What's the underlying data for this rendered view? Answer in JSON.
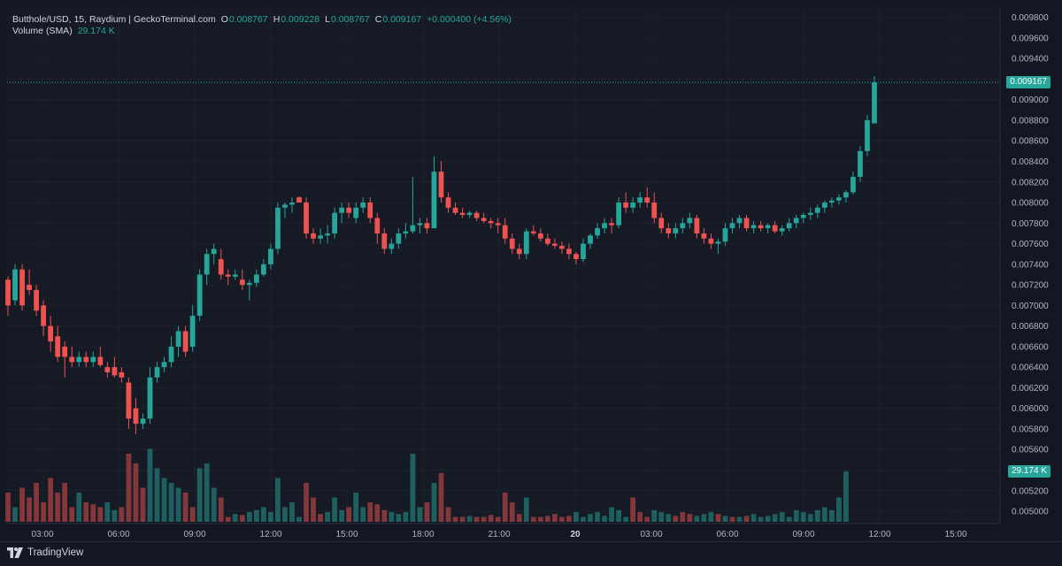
{
  "legend": {
    "symbol": "Butthole/USD, 15, Raydium | GeckoTerminal.com",
    "o_label": "O",
    "o_value": "0.008767",
    "h_label": "H",
    "h_value": "0.009228",
    "l_label": "L",
    "l_value": "0.008767",
    "c_label": "C",
    "c_value": "0.009167",
    "change": "+0.000400 (+4.56%)",
    "volume_label": "Volume (SMA)",
    "volume_value": "29.174 K"
  },
  "price_tag": "0.009167",
  "volume_tag": "29.174 K",
  "branding": "TradingView",
  "colors": {
    "up": "#26a69a",
    "down": "#ef5350",
    "background": "#131722",
    "grid": "#1e222d",
    "text": "#b2b5be"
  },
  "icons": [
    "tradingview-logo-icon"
  ],
  "chart_data": {
    "type": "candlestick",
    "title": "Butthole/USD, 15, Raydium",
    "x_tick_labels": [
      "03:00",
      "06:00",
      "09:00",
      "12:00",
      "15:00",
      "18:00",
      "21:00",
      "20",
      "03:00",
      "06:00",
      "09:00",
      "12:00",
      "15:00"
    ],
    "y_tick_labels": [
      "0.009800",
      "0.009600",
      "0.009400",
      "0.009200",
      "0.009000",
      "0.008800",
      "0.008600",
      "0.008400",
      "0.008200",
      "0.008000",
      "0.007800",
      "0.007600",
      "0.007400",
      "0.007200",
      "0.007000",
      "0.006800",
      "0.006600",
      "0.006400",
      "0.006200",
      "0.006000",
      "0.005800",
      "0.005600",
      "0.005400",
      "0.005200",
      "0.005000"
    ],
    "ylim": [
      0.00488,
      0.0099
    ],
    "last_price": 0.009167,
    "ohlc": [
      [
        0.00725,
        0.00728,
        0.0069,
        0.007
      ],
      [
        0.00705,
        0.0074,
        0.007,
        0.00735
      ],
      [
        0.00735,
        0.0074,
        0.00695,
        0.007
      ],
      [
        0.0072,
        0.00735,
        0.0071,
        0.00715
      ],
      [
        0.00715,
        0.0072,
        0.0069,
        0.00695
      ],
      [
        0.007,
        0.00705,
        0.0067,
        0.0068
      ],
      [
        0.0068,
        0.0069,
        0.00655,
        0.00665
      ],
      [
        0.0067,
        0.0068,
        0.00645,
        0.0065
      ],
      [
        0.0066,
        0.00665,
        0.0063,
        0.0065
      ],
      [
        0.0065,
        0.0066,
        0.0064,
        0.00645
      ],
      [
        0.00645,
        0.00655,
        0.0064,
        0.0065
      ],
      [
        0.0065,
        0.00655,
        0.0064,
        0.00645
      ],
      [
        0.00645,
        0.00655,
        0.0064,
        0.0065
      ],
      [
        0.0065,
        0.0066,
        0.0064,
        0.00642
      ],
      [
        0.0064,
        0.00645,
        0.0063,
        0.00635
      ],
      [
        0.0064,
        0.0065,
        0.0063,
        0.00632
      ],
      [
        0.00635,
        0.0064,
        0.00625,
        0.0063
      ],
      [
        0.00625,
        0.0063,
        0.0058,
        0.0059
      ],
      [
        0.006,
        0.0061,
        0.00575,
        0.00585
      ],
      [
        0.00585,
        0.00595,
        0.0058,
        0.0059
      ],
      [
        0.0059,
        0.0064,
        0.00585,
        0.0063
      ],
      [
        0.0063,
        0.00645,
        0.00625,
        0.0064
      ],
      [
        0.0064,
        0.0065,
        0.00635,
        0.00645
      ],
      [
        0.00645,
        0.0067,
        0.0064,
        0.0066
      ],
      [
        0.0066,
        0.0068,
        0.0065,
        0.00675
      ],
      [
        0.00675,
        0.0068,
        0.0065,
        0.00655
      ],
      [
        0.0066,
        0.007,
        0.00655,
        0.0069
      ],
      [
        0.0069,
        0.00735,
        0.00685,
        0.0073
      ],
      [
        0.0073,
        0.00755,
        0.0072,
        0.0075
      ],
      [
        0.0075,
        0.0076,
        0.0074,
        0.00755
      ],
      [
        0.00745,
        0.00755,
        0.00725,
        0.0073
      ],
      [
        0.0073,
        0.00735,
        0.0072,
        0.00728
      ],
      [
        0.00728,
        0.00735,
        0.00725,
        0.0073
      ],
      [
        0.00725,
        0.00735,
        0.00715,
        0.0072
      ],
      [
        0.0072,
        0.00725,
        0.00705,
        0.00722
      ],
      [
        0.00722,
        0.00735,
        0.00718,
        0.0073
      ],
      [
        0.0073,
        0.00745,
        0.00728,
        0.0074
      ],
      [
        0.0074,
        0.0076,
        0.00735,
        0.00755
      ],
      [
        0.00755,
        0.008,
        0.0075,
        0.00795
      ],
      [
        0.00795,
        0.008,
        0.00785,
        0.00798
      ],
      [
        0.00798,
        0.00805,
        0.0079,
        0.008
      ],
      [
        0.00805,
        0.00806,
        0.008,
        0.008
      ],
      [
        0.008,
        0.00805,
        0.00765,
        0.0077
      ],
      [
        0.0077,
        0.00775,
        0.0076,
        0.00765
      ],
      [
        0.00765,
        0.00775,
        0.0076,
        0.00768
      ],
      [
        0.00768,
        0.00778,
        0.0076,
        0.0077
      ],
      [
        0.0077,
        0.00795,
        0.00765,
        0.0079
      ],
      [
        0.0079,
        0.008,
        0.0078,
        0.00795
      ],
      [
        0.00795,
        0.008,
        0.00785,
        0.0079
      ],
      [
        0.00785,
        0.008,
        0.0078,
        0.00795
      ],
      [
        0.00795,
        0.00805,
        0.0079,
        0.008
      ],
      [
        0.008,
        0.00805,
        0.0078,
        0.00785
      ],
      [
        0.00785,
        0.0079,
        0.0076,
        0.0077
      ],
      [
        0.0077,
        0.00775,
        0.0075,
        0.00755
      ],
      [
        0.00755,
        0.00765,
        0.0075,
        0.0076
      ],
      [
        0.0076,
        0.00775,
        0.00755,
        0.0077
      ],
      [
        0.0077,
        0.0078,
        0.00765,
        0.00772
      ],
      [
        0.00772,
        0.00825,
        0.0077,
        0.00778
      ],
      [
        0.00778,
        0.00785,
        0.0077,
        0.0078
      ],
      [
        0.0078,
        0.00785,
        0.0077,
        0.00775
      ],
      [
        0.00775,
        0.00845,
        0.00775,
        0.0083
      ],
      [
        0.0083,
        0.0084,
        0.008,
        0.00805
      ],
      [
        0.00805,
        0.0081,
        0.0079,
        0.00795
      ],
      [
        0.00795,
        0.008,
        0.00788,
        0.0079
      ],
      [
        0.0079,
        0.00795,
        0.00785,
        0.00788
      ],
      [
        0.00788,
        0.00792,
        0.00785,
        0.0079
      ],
      [
        0.0079,
        0.00792,
        0.00782,
        0.00785
      ],
      [
        0.00785,
        0.0079,
        0.0078,
        0.00782
      ],
      [
        0.00782,
        0.00785,
        0.00775,
        0.0078
      ],
      [
        0.0078,
        0.00785,
        0.0077,
        0.00778
      ],
      [
        0.00778,
        0.00785,
        0.0076,
        0.00765
      ],
      [
        0.00765,
        0.0077,
        0.0075,
        0.00755
      ],
      [
        0.00755,
        0.0076,
        0.00745,
        0.0075
      ],
      [
        0.0075,
        0.00775,
        0.00745,
        0.00772
      ],
      [
        0.00772,
        0.00778,
        0.00768,
        0.0077
      ],
      [
        0.0077,
        0.00775,
        0.00762,
        0.00765
      ],
      [
        0.00765,
        0.0077,
        0.00758,
        0.0076
      ],
      [
        0.0076,
        0.00765,
        0.00755,
        0.00758
      ],
      [
        0.00758,
        0.00762,
        0.0075,
        0.00755
      ],
      [
        0.00755,
        0.0076,
        0.00745,
        0.0075
      ],
      [
        0.0075,
        0.00752,
        0.0074,
        0.00745
      ],
      [
        0.00745,
        0.00765,
        0.00742,
        0.0076
      ],
      [
        0.0076,
        0.0077,
        0.00755,
        0.00768
      ],
      [
        0.00768,
        0.0078,
        0.00765,
        0.00775
      ],
      [
        0.00775,
        0.00785,
        0.0077,
        0.0078
      ],
      [
        0.0078,
        0.00785,
        0.0077,
        0.00778
      ],
      [
        0.00778,
        0.00805,
        0.00775,
        0.008
      ],
      [
        0.008,
        0.0081,
        0.0079,
        0.00795
      ],
      [
        0.00795,
        0.00805,
        0.0079,
        0.008
      ],
      [
        0.008,
        0.0081,
        0.00795,
        0.00805
      ],
      [
        0.00805,
        0.00815,
        0.00795,
        0.008
      ],
      [
        0.008,
        0.0081,
        0.0078,
        0.00785
      ],
      [
        0.00785,
        0.0079,
        0.0077,
        0.00775
      ],
      [
        0.00775,
        0.0078,
        0.00765,
        0.0077
      ],
      [
        0.0077,
        0.0078,
        0.00765,
        0.00775
      ],
      [
        0.00775,
        0.00785,
        0.0077,
        0.0078
      ],
      [
        0.0078,
        0.0079,
        0.00775,
        0.00785
      ],
      [
        0.00785,
        0.00788,
        0.00765,
        0.0077
      ],
      [
        0.0077,
        0.00775,
        0.0076,
        0.00765
      ],
      [
        0.00765,
        0.0077,
        0.00755,
        0.0076
      ],
      [
        0.0076,
        0.00765,
        0.0075,
        0.00762
      ],
      [
        0.00762,
        0.0078,
        0.00758,
        0.00775
      ],
      [
        0.00775,
        0.00785,
        0.0077,
        0.0078
      ],
      [
        0.0078,
        0.00788,
        0.00775,
        0.00785
      ],
      [
        0.00785,
        0.00788,
        0.00772,
        0.00775
      ],
      [
        0.00775,
        0.00782,
        0.0077,
        0.00778
      ],
      [
        0.00778,
        0.00782,
        0.00772,
        0.00775
      ],
      [
        0.00775,
        0.0078,
        0.0077,
        0.00778
      ],
      [
        0.00778,
        0.00782,
        0.0077,
        0.00772
      ],
      [
        0.00772,
        0.00778,
        0.00768,
        0.00775
      ],
      [
        0.00775,
        0.00785,
        0.00772,
        0.0078
      ],
      [
        0.0078,
        0.00788,
        0.00775,
        0.00785
      ],
      [
        0.00785,
        0.0079,
        0.0078,
        0.00788
      ],
      [
        0.00788,
        0.00795,
        0.00783,
        0.0079
      ],
      [
        0.0079,
        0.00798,
        0.00785,
        0.00795
      ],
      [
        0.00795,
        0.00802,
        0.0079,
        0.008
      ],
      [
        0.008,
        0.00805,
        0.00795,
        0.00802
      ],
      [
        0.00802,
        0.00808,
        0.00798,
        0.00805
      ],
      [
        0.00805,
        0.00812,
        0.008,
        0.0081
      ],
      [
        0.0081,
        0.0083,
        0.00808,
        0.00825
      ],
      [
        0.00825,
        0.00855,
        0.0082,
        0.0085
      ],
      [
        0.0085,
        0.00885,
        0.00845,
        0.0088
      ],
      [
        0.00877,
        0.00923,
        0.00877,
        0.00917
      ]
    ],
    "volume": [
      [
        0.3,
        "down"
      ],
      [
        0.15,
        "up"
      ],
      [
        0.35,
        "down"
      ],
      [
        0.25,
        "down"
      ],
      [
        0.4,
        "down"
      ],
      [
        0.2,
        "down"
      ],
      [
        0.45,
        "down"
      ],
      [
        0.3,
        "down"
      ],
      [
        0.4,
        "down"
      ],
      [
        0.15,
        "down"
      ],
      [
        0.3,
        "up"
      ],
      [
        0.2,
        "down"
      ],
      [
        0.18,
        "down"
      ],
      [
        0.15,
        "down"
      ],
      [
        0.2,
        "up"
      ],
      [
        0.12,
        "up"
      ],
      [
        0.15,
        "down"
      ],
      [
        0.7,
        "down"
      ],
      [
        0.6,
        "down"
      ],
      [
        0.35,
        "down"
      ],
      [
        0.75,
        "up"
      ],
      [
        0.55,
        "up"
      ],
      [
        0.45,
        "up"
      ],
      [
        0.4,
        "up"
      ],
      [
        0.35,
        "up"
      ],
      [
        0.3,
        "down"
      ],
      [
        0.15,
        "down"
      ],
      [
        0.55,
        "up"
      ],
      [
        0.6,
        "up"
      ],
      [
        0.35,
        "up"
      ],
      [
        0.25,
        "down"
      ],
      [
        0.05,
        "down"
      ],
      [
        0.08,
        "up"
      ],
      [
        0.07,
        "down"
      ],
      [
        0.1,
        "up"
      ],
      [
        0.12,
        "up"
      ],
      [
        0.15,
        "up"
      ],
      [
        0.1,
        "up"
      ],
      [
        0.45,
        "up"
      ],
      [
        0.15,
        "up"
      ],
      [
        0.2,
        "up"
      ],
      [
        0.05,
        "up"
      ],
      [
        0.4,
        "down"
      ],
      [
        0.25,
        "down"
      ],
      [
        0.08,
        "down"
      ],
      [
        0.1,
        "up"
      ],
      [
        0.25,
        "up"
      ],
      [
        0.12,
        "up"
      ],
      [
        0.15,
        "down"
      ],
      [
        0.3,
        "up"
      ],
      [
        0.15,
        "up"
      ],
      [
        0.2,
        "down"
      ],
      [
        0.18,
        "down"
      ],
      [
        0.12,
        "down"
      ],
      [
        0.1,
        "up"
      ],
      [
        0.08,
        "up"
      ],
      [
        0.1,
        "up"
      ],
      [
        0.7,
        "up"
      ],
      [
        0.15,
        "up"
      ],
      [
        0.2,
        "down"
      ],
      [
        0.4,
        "up"
      ],
      [
        0.5,
        "down"
      ],
      [
        0.15,
        "down"
      ],
      [
        0.05,
        "down"
      ],
      [
        0.05,
        "down"
      ],
      [
        0.06,
        "up"
      ],
      [
        0.05,
        "down"
      ],
      [
        0.05,
        "down"
      ],
      [
        0.07,
        "down"
      ],
      [
        0.05,
        "down"
      ],
      [
        0.3,
        "down"
      ],
      [
        0.2,
        "down"
      ],
      [
        0.08,
        "down"
      ],
      [
        0.25,
        "up"
      ],
      [
        0.05,
        "down"
      ],
      [
        0.05,
        "down"
      ],
      [
        0.06,
        "down"
      ],
      [
        0.08,
        "down"
      ],
      [
        0.05,
        "down"
      ],
      [
        0.06,
        "down"
      ],
      [
        0.1,
        "up"
      ],
      [
        0.05,
        "up"
      ],
      [
        0.08,
        "up"
      ],
      [
        0.1,
        "up"
      ],
      [
        0.06,
        "up"
      ],
      [
        0.15,
        "up"
      ],
      [
        0.12,
        "up"
      ],
      [
        0.05,
        "up"
      ],
      [
        0.25,
        "down"
      ],
      [
        0.1,
        "down"
      ],
      [
        0.05,
        "down"
      ],
      [
        0.12,
        "up"
      ],
      [
        0.1,
        "up"
      ],
      [
        0.08,
        "up"
      ],
      [
        0.06,
        "down"
      ],
      [
        0.1,
        "down"
      ],
      [
        0.08,
        "down"
      ],
      [
        0.06,
        "up"
      ],
      [
        0.08,
        "up"
      ],
      [
        0.1,
        "up"
      ],
      [
        0.08,
        "down"
      ],
      [
        0.06,
        "up"
      ],
      [
        0.05,
        "down"
      ],
      [
        0.05,
        "up"
      ],
      [
        0.06,
        "down"
      ],
      [
        0.08,
        "up"
      ],
      [
        0.05,
        "up"
      ],
      [
        0.06,
        "up"
      ],
      [
        0.08,
        "up"
      ],
      [
        0.1,
        "up"
      ],
      [
        0.05,
        "up"
      ],
      [
        0.12,
        "up"
      ],
      [
        0.1,
        "up"
      ],
      [
        0.08,
        "up"
      ],
      [
        0.12,
        "up"
      ],
      [
        0.15,
        "up"
      ],
      [
        0.12,
        "up"
      ],
      [
        0.25,
        "up"
      ],
      [
        0.52,
        "up"
      ]
    ]
  }
}
